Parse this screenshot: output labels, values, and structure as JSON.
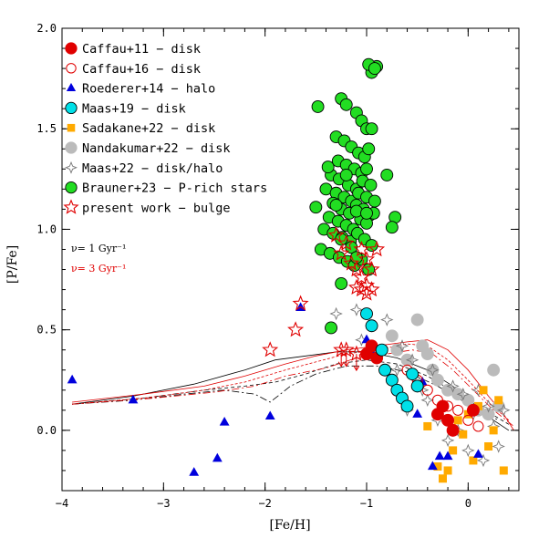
{
  "chart_data": {
    "type": "scatter",
    "xlabel": "[Fe/H]",
    "ylabel": "[P/Fe]",
    "xlim": [
      -4.0,
      0.5
    ],
    "ylim": [
      -0.3,
      2.0
    ],
    "xticks": [
      -4,
      -3,
      -2,
      -1,
      0
    ],
    "xtick_labels": [
      "−4",
      "−3",
      "−2",
      "−1",
      "0"
    ],
    "yticks": [
      0.0,
      0.5,
      1.0,
      1.5,
      2.0
    ],
    "ytick_labels": [
      "0.0",
      "0.5",
      "1.0",
      "1.5",
      "2.0"
    ],
    "legend_position": "top-left",
    "annotations": [
      {
        "text": "ν= 1 Gyr⁻¹",
        "color": "#000000"
      },
      {
        "text": "ν= 3 Gyr⁻¹",
        "color": "#e00000"
      }
    ],
    "series": [
      {
        "name": "Caffau+11 − disk",
        "marker": "circle-filled",
        "color": "#e00000",
        "x": [
          -1.0,
          -0.95,
          -0.9,
          -0.3,
          -0.25,
          -0.2,
          -0.15,
          0.05
        ],
        "y": [
          0.38,
          0.42,
          0.36,
          0.08,
          0.12,
          0.05,
          0.0,
          0.1
        ]
      },
      {
        "name": "Caffau+16 − disk",
        "marker": "circle-open",
        "color": "#e00000",
        "x": [
          -0.6,
          -0.5,
          -0.4,
          -0.3,
          -0.2,
          -0.1,
          0.0,
          0.1
        ],
        "y": [
          0.3,
          0.25,
          0.2,
          0.15,
          0.12,
          0.1,
          0.05,
          0.02
        ]
      },
      {
        "name": "Roederer+14 − halo",
        "marker": "triangle",
        "color": "#0000dd",
        "x": [
          -3.9,
          -3.3,
          -2.7,
          -2.47,
          -2.4,
          -1.95,
          -1.65,
          -1.0,
          -0.95,
          -0.5,
          -0.45,
          -0.35,
          -0.28,
          -0.2,
          0.1
        ],
        "y": [
          0.25,
          0.15,
          -0.21,
          -0.14,
          0.04,
          0.07,
          0.61,
          0.45,
          0.39,
          0.08,
          0.24,
          -0.18,
          -0.13,
          -0.13,
          -0.12
        ]
      },
      {
        "name": "Maas+19 − disk",
        "marker": "circle-filled",
        "color": "#00e0e8",
        "x": [
          -1.0,
          -0.95,
          -0.85,
          -0.82,
          -0.75,
          -0.7,
          -0.65,
          -0.6,
          -0.55,
          -0.5
        ],
        "y": [
          0.58,
          0.52,
          0.4,
          0.3,
          0.25,
          0.2,
          0.16,
          0.12,
          0.28,
          0.22
        ]
      },
      {
        "name": "Sadakane+22 − disk",
        "marker": "square",
        "color": "#ffaa00",
        "x": [
          -0.4,
          -0.3,
          -0.25,
          -0.2,
          -0.15,
          -0.1,
          -0.05,
          0.0,
          0.05,
          0.1,
          0.15,
          0.2,
          0.25,
          0.3,
          0.35
        ],
        "y": [
          0.02,
          -0.18,
          -0.24,
          -0.2,
          -0.1,
          0.05,
          -0.02,
          0.08,
          -0.15,
          0.12,
          0.2,
          -0.08,
          0.0,
          0.15,
          -0.2
        ]
      },
      {
        "name": "Nandakumar+22 − disk",
        "marker": "circle-filled",
        "color": "#bbbbbb",
        "x": [
          -0.75,
          -0.7,
          -0.6,
          -0.5,
          -0.45,
          -0.4,
          -0.35,
          -0.3,
          -0.2,
          -0.1,
          0.0,
          0.1,
          0.2,
          0.25,
          0.3
        ],
        "y": [
          0.47,
          0.4,
          0.35,
          0.55,
          0.42,
          0.38,
          0.3,
          0.25,
          0.2,
          0.18,
          0.15,
          0.1,
          0.08,
          0.3,
          0.12
        ]
      },
      {
        "name": "Maas+22 − disk/halo",
        "marker": "star-open",
        "color": "#777777",
        "x": [
          -1.3,
          -1.1,
          -1.05,
          -0.9,
          -0.8,
          -0.7,
          -0.65,
          -0.6,
          -0.55,
          -0.5,
          -0.45,
          -0.4,
          -0.35,
          -0.3,
          -0.25,
          -0.2,
          -0.15,
          -0.1,
          -0.05,
          0.0,
          0.05,
          0.1,
          0.15,
          0.2,
          0.25,
          0.3,
          0.35
        ],
        "y": [
          0.58,
          0.6,
          0.45,
          0.38,
          0.55,
          0.3,
          0.42,
          0.1,
          0.35,
          0.25,
          0.2,
          0.15,
          0.3,
          0.05,
          0.12,
          -0.05,
          0.22,
          0.0,
          0.18,
          -0.1,
          0.08,
          0.2,
          -0.15,
          0.12,
          0.02,
          -0.08,
          0.1
        ]
      },
      {
        "name": "Brauner+23 − P-rich stars",
        "marker": "circle-filled",
        "color": "#22dd22",
        "x": [
          -0.9,
          -0.95,
          -0.98,
          -0.92,
          -1.25,
          -1.2,
          -1.1,
          -1.05,
          -1.0,
          -0.95,
          -1.3,
          -1.22,
          -1.15,
          -1.08,
          -1.02,
          -0.98,
          -1.28,
          -1.2,
          -1.12,
          -1.05,
          -1.0,
          -1.35,
          -1.27,
          -1.18,
          -1.1,
          -1.04,
          -0.96,
          -1.4,
          -1.3,
          -1.22,
          -1.15,
          -1.08,
          -1.0,
          -1.33,
          -1.25,
          -1.17,
          -1.1,
          -1.03,
          -0.97,
          -0.92,
          -1.37,
          -1.28,
          -1.2,
          -1.13,
          -1.06,
          -1.0,
          -0.93,
          -1.42,
          -1.33,
          -1.24,
          -1.16,
          -1.09,
          -1.02,
          -0.95,
          -1.45,
          -1.36,
          -1.27,
          -1.19,
          -1.12,
          -1.05,
          -0.98,
          -0.72,
          -0.75,
          -1.5,
          -1.48,
          -1.38,
          -1.3,
          -1.2,
          -1.1,
          -1.0,
          -0.8,
          -1.25,
          -1.35,
          -1.25,
          -1.15,
          -1.1
        ],
        "y": [
          1.81,
          1.78,
          1.82,
          1.8,
          1.65,
          1.62,
          1.58,
          1.54,
          1.5,
          1.5,
          1.46,
          1.44,
          1.41,
          1.38,
          1.36,
          1.4,
          1.34,
          1.32,
          1.3,
          1.28,
          1.3,
          1.27,
          1.25,
          1.22,
          1.2,
          1.24,
          1.22,
          1.2,
          1.18,
          1.16,
          1.14,
          1.18,
          1.16,
          1.13,
          1.1,
          1.08,
          1.12,
          1.1,
          1.07,
          1.14,
          1.06,
          1.04,
          1.02,
          1.0,
          1.05,
          1.03,
          1.08,
          1.0,
          0.98,
          0.96,
          0.94,
          0.98,
          0.95,
          0.92,
          0.9,
          0.88,
          0.86,
          0.84,
          0.82,
          0.85,
          0.8,
          1.06,
          1.01,
          1.11,
          1.61,
          1.31,
          1.12,
          1.27,
          1.09,
          1.08,
          1.27,
          0.73,
          0.51,
          0.95,
          0.91,
          0.86
        ]
      },
      {
        "name": "present work − bulge",
        "marker": "star-open",
        "color": "#e00000",
        "x": [
          -1.95,
          -1.7,
          -1.65,
          -1.3,
          -1.2,
          -1.25,
          -1.15,
          -1.1,
          -1.05,
          -1.0,
          -0.95,
          -0.9,
          -1.05,
          -1.0,
          -0.95,
          -1.1,
          -1.05,
          -1.0,
          -1.25,
          -1.2,
          -1.1
        ],
        "y": [
          0.4,
          0.5,
          0.63,
          0.97,
          0.93,
          0.88,
          0.83,
          0.8,
          0.76,
          0.72,
          0.7,
          0.9,
          0.9,
          0.85,
          0.8,
          0.71,
          0.7,
          0.68,
          0.4,
          0.4,
          0.38
        ]
      }
    ]
  }
}
